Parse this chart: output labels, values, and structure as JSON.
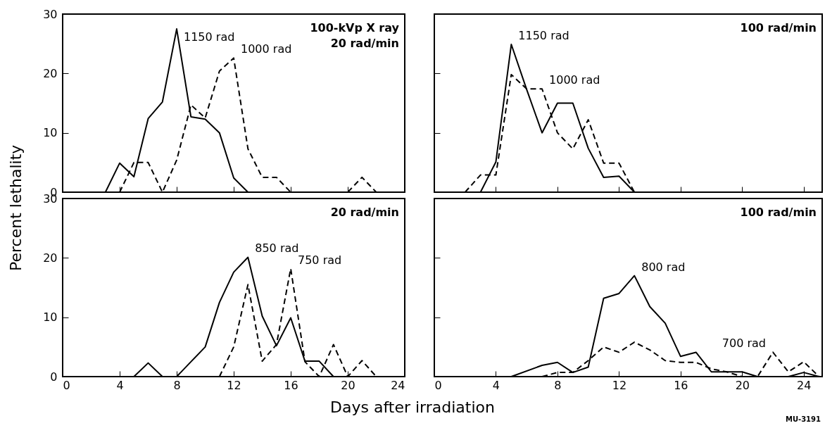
{
  "chart_data": [
    {
      "type": "line",
      "title": "100-kVp X ray\n20 rad/min",
      "ylabel": "Percent lethality",
      "xlim": [
        0,
        24
      ],
      "xticks": [
        0,
        4,
        8,
        12,
        16,
        20,
        24
      ],
      "ylim": [
        0,
        30
      ],
      "yticks": [
        0,
        10,
        20,
        30
      ],
      "tick_labels": "y",
      "grid": false,
      "series": [
        {
          "name": "1150 rad",
          "color": "#000000",
          "line_style": "solid",
          "x": [
            0,
            1,
            2,
            3,
            4,
            5,
            6,
            7,
            8,
            9,
            10,
            11,
            12,
            13
          ],
          "values": [
            0,
            0,
            0,
            0,
            4.9,
            2.6,
            12.4,
            15.2,
            27.5,
            12.7,
            12.3,
            10,
            2.4,
            0
          ]
        },
        {
          "name": "1000 rad",
          "color": "#000000",
          "line_style": "dashed",
          "x": [
            4,
            5,
            6,
            7,
            8,
            9,
            10,
            11,
            12,
            13,
            14,
            15,
            16,
            17,
            18,
            19,
            20,
            21,
            22,
            23
          ],
          "values": [
            0,
            5,
            5,
            0,
            5.4,
            14.7,
            12.5,
            20.4,
            22.6,
            7.3,
            2.5,
            2.5,
            0,
            0,
            0,
            0,
            0,
            2.5,
            0,
            0
          ]
        }
      ]
    },
    {
      "type": "line",
      "title": "100 rad/min",
      "xlim": [
        0,
        25.2
      ],
      "xticks": [
        0,
        4,
        8,
        12,
        16,
        20,
        24
      ],
      "ylim": [
        0,
        30
      ],
      "yticks": [
        0,
        10,
        20,
        30
      ],
      "tick_labels": false,
      "grid": false,
      "series": [
        {
          "name": "1150 rad",
          "color": "#000000",
          "line_style": "solid",
          "x": [
            3,
            4,
            5,
            6,
            7,
            8,
            9,
            10,
            11,
            12,
            13
          ],
          "values": [
            0,
            5.1,
            24.9,
            17.3,
            10,
            15,
            15,
            7.4,
            2.5,
            2.7,
            0
          ]
        },
        {
          "name": "1000 rad",
          "color": "#000000",
          "line_style": "dashed",
          "x": [
            2,
            3,
            4,
            5,
            6,
            7,
            8,
            9,
            10,
            11,
            12,
            13
          ],
          "values": [
            0,
            2.9,
            2.9,
            19.8,
            17.4,
            17.4,
            10,
            7.3,
            12.2,
            4.9,
            4.9,
            0
          ]
        }
      ]
    },
    {
      "type": "line",
      "title": "20 rad/min",
      "xlabel": "Days after irradiation",
      "xlim": [
        0,
        24
      ],
      "xticks": [
        0,
        4,
        8,
        12,
        16,
        20,
        24
      ],
      "ylim": [
        0,
        30
      ],
      "yticks": [
        0,
        10,
        20,
        30
      ],
      "grid": false,
      "series": [
        {
          "name": "850 rad",
          "color": "#000000",
          "line_style": "solid",
          "x": [
            0,
            1,
            2,
            3,
            4,
            5,
            6,
            7,
            8,
            9,
            10,
            11,
            12,
            13,
            14,
            15,
            16,
            17,
            18,
            19
          ],
          "values": [
            0,
            0,
            0,
            0,
            0,
            0,
            2.3,
            0,
            0,
            2.5,
            5,
            12.5,
            17.6,
            20.1,
            10.2,
            5.2,
            9.9,
            2.6,
            2.6,
            0
          ]
        },
        {
          "name": "750 rad",
          "color": "#000000",
          "line_style": "dashed",
          "x": [
            11,
            12,
            13,
            14,
            15,
            16,
            17,
            18,
            19,
            20,
            21,
            22,
            23
          ],
          "values": [
            0,
            5,
            15.5,
            2.6,
            5.4,
            18.2,
            2.5,
            0,
            5.4,
            0,
            2.7,
            0,
            0
          ]
        }
      ]
    },
    {
      "type": "line",
      "title": "100 rad/min",
      "annotations": [
        "MU-3191"
      ],
      "xlim": [
        0,
        25.2
      ],
      "xticks": [
        0,
        4,
        8,
        12,
        16,
        20,
        24
      ],
      "ylim": [
        0,
        30
      ],
      "yticks": [
        0,
        10,
        20,
        30
      ],
      "tick_labels": "x",
      "grid": false,
      "series": [
        {
          "name": "800 rad",
          "color": "#000000",
          "line_style": "solid",
          "x": [
            5,
            7,
            8,
            9,
            10,
            11,
            12,
            13,
            14,
            15,
            16,
            17,
            18,
            19,
            20,
            21,
            22,
            23,
            24,
            25
          ],
          "values": [
            0,
            1.9,
            2.4,
            0.7,
            1.6,
            13.2,
            14,
            17,
            11.8,
            9,
            3.4,
            4.1,
            0.8,
            0.8,
            0.8,
            0,
            0,
            0,
            0.7,
            0
          ]
        },
        {
          "name": "700 rad",
          "color": "#000000",
          "line_style": "dashed",
          "x": [
            7,
            8,
            9,
            10,
            11,
            12,
            13,
            14,
            15,
            16,
            17,
            18,
            19,
            20,
            21,
            22,
            23,
            24,
            25
          ],
          "values": [
            0,
            0.7,
            0.7,
            2.7,
            5,
            4.1,
            5.8,
            4.5,
            2.7,
            2.4,
            2.4,
            1.3,
            0.8,
            0,
            0,
            4.1,
            0.8,
            2.5,
            0
          ]
        }
      ]
    }
  ]
}
